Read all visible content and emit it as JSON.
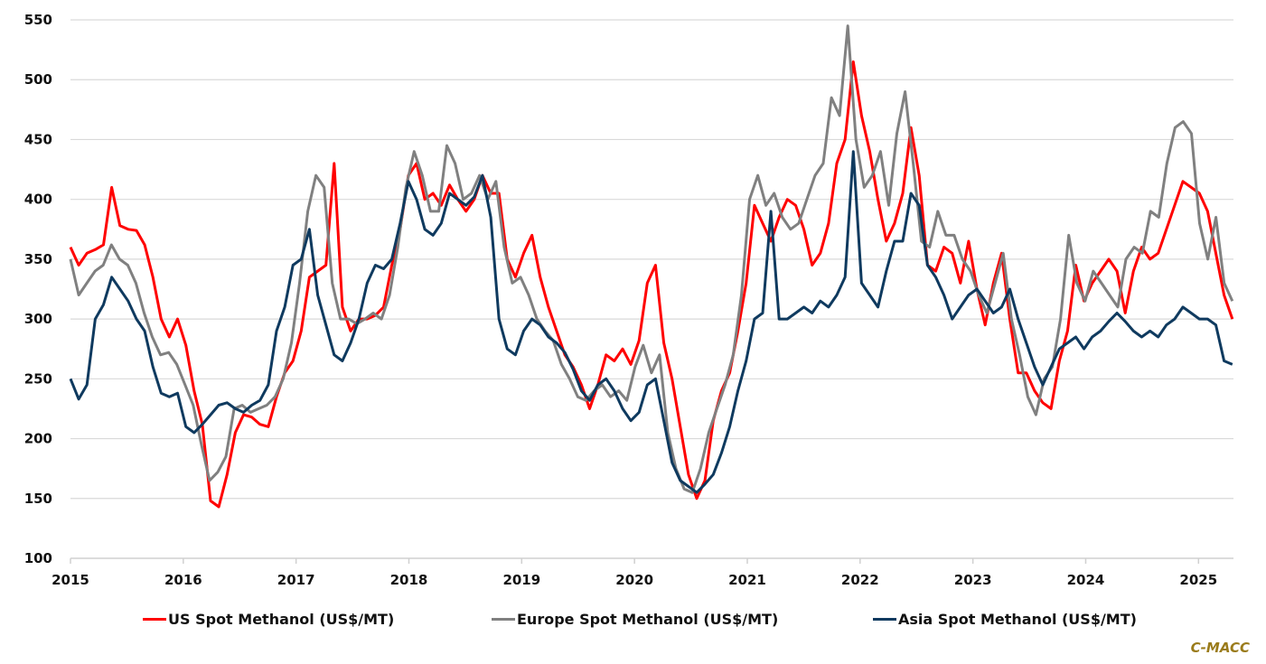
{
  "chart_data": {
    "type": "line",
    "title": "",
    "xlabel": "",
    "ylabel": "",
    "ylim": [
      100,
      550
    ],
    "xlim": [
      2015,
      2025.3
    ],
    "yticks": [
      100,
      150,
      200,
      250,
      300,
      350,
      400,
      450,
      500,
      550
    ],
    "xticks": [
      2015,
      2016,
      2017,
      2018,
      2019,
      2020,
      2021,
      2022,
      2023,
      2024,
      2025
    ],
    "grid": "horizontal",
    "legend_position": "bottom",
    "x_step_years": 0.0833333,
    "x_start": 2015.0,
    "series": [
      {
        "name": "US Spot Methanol (US$/MT)",
        "color": "#ff0000",
        "values": [
          360,
          345,
          355,
          358,
          362,
          410,
          378,
          375,
          374,
          362,
          335,
          300,
          285,
          300,
          278,
          240,
          212,
          148,
          143,
          170,
          205,
          220,
          218,
          212,
          210,
          235,
          255,
          265,
          290,
          335,
          340,
          345,
          430,
          310,
          290,
          300,
          300,
          303,
          310,
          345,
          375,
          420,
          430,
          400,
          405,
          395,
          412,
          400,
          390,
          400,
          420,
          405,
          405,
          350,
          335,
          355,
          370,
          335,
          310,
          290,
          270,
          260,
          245,
          225,
          245,
          270,
          265,
          275,
          262,
          282,
          330,
          345,
          280,
          250,
          210,
          170,
          150,
          165,
          215,
          240,
          255,
          290,
          330,
          395,
          380,
          365,
          385,
          400,
          395,
          375,
          345,
          355,
          380,
          430,
          450,
          515,
          470,
          440,
          400,
          365,
          380,
          405,
          460,
          420,
          345,
          340,
          360,
          355,
          330,
          365,
          325,
          295,
          330,
          355,
          300,
          255,
          255,
          240,
          230,
          225,
          265,
          290,
          345,
          315,
          330,
          340,
          350,
          340,
          305,
          340,
          360,
          350,
          355,
          375,
          395,
          415,
          410,
          405,
          390,
          355,
          320,
          300
        ]
      },
      {
        "name": "Europe Spot Methanol (US$/MT)",
        "color": "#808080",
        "values": [
          350,
          320,
          330,
          340,
          345,
          362,
          350,
          345,
          330,
          305,
          285,
          270,
          272,
          262,
          245,
          228,
          195,
          165,
          172,
          185,
          225,
          228,
          222,
          225,
          228,
          235,
          250,
          280,
          330,
          390,
          420,
          410,
          330,
          300,
          300,
          296,
          300,
          305,
          300,
          320,
          360,
          410,
          440,
          420,
          390,
          390,
          445,
          430,
          400,
          405,
          420,
          400,
          415,
          360,
          330,
          335,
          320,
          300,
          290,
          282,
          262,
          250,
          235,
          232,
          240,
          245,
          235,
          240,
          232,
          260,
          278,
          255,
          270,
          205,
          175,
          158,
          155,
          175,
          205,
          225,
          245,
          270,
          320,
          400,
          420,
          395,
          405,
          385,
          375,
          380,
          400,
          420,
          430,
          485,
          470,
          545,
          450,
          410,
          420,
          440,
          395,
          455,
          490,
          430,
          365,
          360,
          390,
          370,
          370,
          350,
          340,
          320,
          305,
          330,
          355,
          300,
          270,
          235,
          220,
          250,
          260,
          300,
          370,
          330,
          315,
          340,
          330,
          320,
          310,
          350,
          360,
          355,
          390,
          385,
          430,
          460,
          465,
          455,
          380,
          350,
          385,
          330,
          315
        ]
      },
      {
        "name": "Asia Spot Methanol (US$/MT)",
        "color": "#0f3a5f",
        "values": [
          250,
          233,
          245,
          300,
          312,
          335,
          325,
          315,
          300,
          290,
          260,
          238,
          235,
          238,
          210,
          205,
          212,
          220,
          228,
          230,
          225,
          222,
          228,
          232,
          245,
          290,
          310,
          345,
          350,
          375,
          320,
          295,
          270,
          265,
          280,
          300,
          330,
          345,
          342,
          350,
          380,
          415,
          400,
          375,
          370,
          380,
          405,
          400,
          395,
          402,
          420,
          385,
          300,
          275,
          270,
          290,
          300,
          295,
          285,
          280,
          272,
          258,
          240,
          232,
          245,
          250,
          240,
          225,
          215,
          222,
          245,
          250,
          215,
          180,
          165,
          160,
          155,
          162,
          170,
          188,
          210,
          240,
          265,
          300,
          305,
          390,
          300,
          300,
          305,
          310,
          305,
          315,
          310,
          320,
          335,
          440,
          330,
          320,
          310,
          340,
          365,
          365,
          405,
          395,
          345,
          335,
          320,
          300,
          310,
          320,
          325,
          315,
          305,
          310,
          325,
          300,
          280,
          260,
          245,
          260,
          275,
          280,
          285,
          275,
          285,
          290,
          298,
          305,
          298,
          290,
          285,
          290,
          285,
          295,
          300,
          310,
          305,
          300,
          300,
          295,
          265,
          262
        ]
      }
    ]
  },
  "legend": {
    "items": [
      "US Spot Methanol (US$/MT)",
      "Europe Spot Methanol (US$/MT)",
      "Asia Spot Methanol (US$/MT)"
    ]
  },
  "source": {
    "label": "C-MACC",
    "color": "#9a7b1a"
  }
}
